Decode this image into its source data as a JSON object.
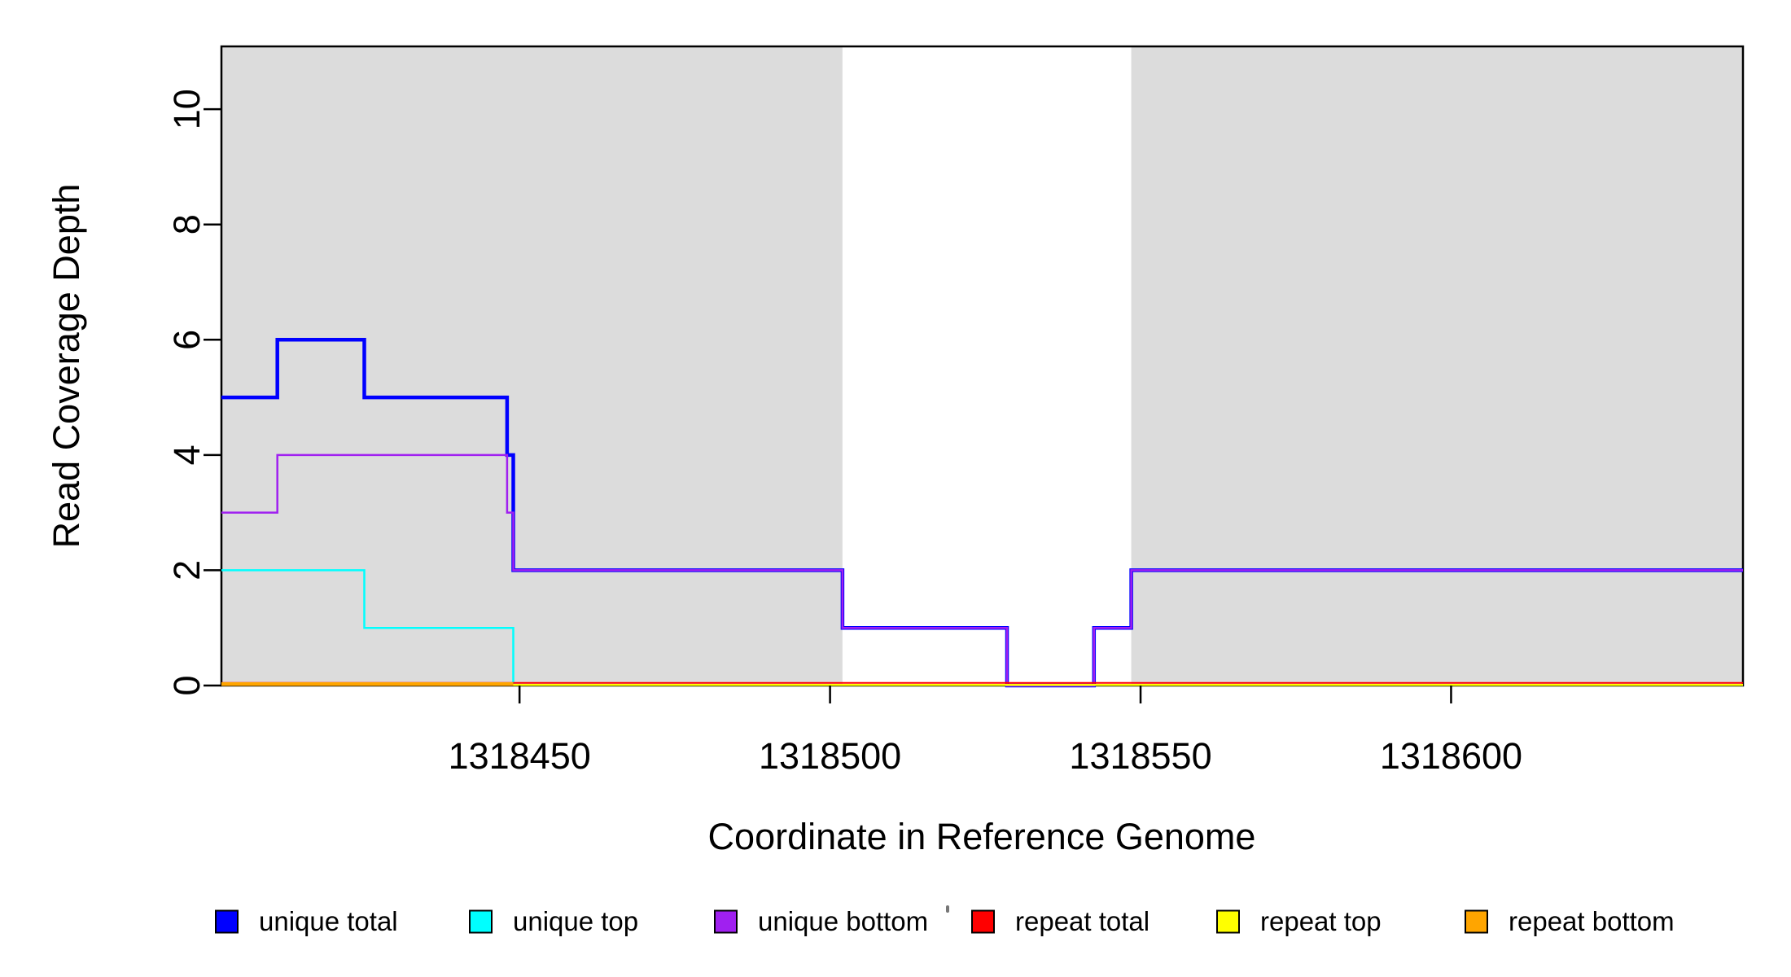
{
  "page": {
    "background": "#ffffff"
  },
  "chart_data": {
    "type": "line",
    "subtype": "step-coverage",
    "title": "",
    "xlabel": "Coordinate in Reference Genome",
    "ylabel": "Read Coverage Depth",
    "xlim": [
      1318402,
      1318647
    ],
    "ylim": [
      0,
      11.09
    ],
    "grid": false,
    "plot_background": "#ffffff",
    "shaded_region_color": "#DCDCDC",
    "shaded_regions": [
      {
        "from": 1318402,
        "to": 1318502
      },
      {
        "from": 1318548.5,
        "to": 1318647
      }
    ],
    "x_ticks": [
      {
        "value": 1318450,
        "label": "1318450"
      },
      {
        "value": 1318500,
        "label": "1318500"
      },
      {
        "value": 1318550,
        "label": "1318550"
      },
      {
        "value": 1318600,
        "label": "1318600"
      }
    ],
    "y_ticks": [
      {
        "value": 0,
        "label": "0"
      },
      {
        "value": 2,
        "label": "2"
      },
      {
        "value": 4,
        "label": "4"
      },
      {
        "value": 6,
        "label": "6"
      },
      {
        "value": 8,
        "label": "8"
      },
      {
        "value": 10,
        "label": "10"
      }
    ],
    "series": [
      {
        "name": "unique total",
        "color": "#0000FF",
        "width": 4.5,
        "dy": 0,
        "points": [
          [
            1318402,
            5
          ],
          [
            1318411,
            5
          ],
          [
            1318411,
            6
          ],
          [
            1318425,
            6
          ],
          [
            1318425,
            5
          ],
          [
            1318448,
            5
          ],
          [
            1318448,
            4
          ],
          [
            1318449,
            4
          ],
          [
            1318449,
            2
          ],
          [
            1318502,
            2
          ],
          [
            1318502,
            1
          ],
          [
            1318528.5,
            1
          ],
          [
            1318528.5,
            0
          ],
          [
            1318542.5,
            0
          ],
          [
            1318542.5,
            1
          ],
          [
            1318548.5,
            1
          ],
          [
            1318548.5,
            2
          ],
          [
            1318647,
            2
          ]
        ]
      },
      {
        "name": "unique top",
        "color": "#00FFFF",
        "width": 2.5,
        "dy": 0,
        "points": [
          [
            1318402,
            2
          ],
          [
            1318425,
            2
          ],
          [
            1318425,
            1
          ],
          [
            1318449,
            1
          ],
          [
            1318449,
            0
          ]
        ]
      },
      {
        "name": "unique bottom",
        "color": "#A020F0",
        "width": 2.5,
        "dy": 0,
        "points": [
          [
            1318402,
            3
          ],
          [
            1318411,
            3
          ],
          [
            1318411,
            4
          ],
          [
            1318448,
            4
          ],
          [
            1318448,
            3
          ],
          [
            1318449,
            3
          ],
          [
            1318449,
            2
          ],
          [
            1318502,
            2
          ],
          [
            1318502,
            1
          ],
          [
            1318528.5,
            1
          ],
          [
            1318528.5,
            0
          ],
          [
            1318542.5,
            0
          ],
          [
            1318542.5,
            1
          ],
          [
            1318548.5,
            1
          ],
          [
            1318548.5,
            2
          ],
          [
            1318647,
            2
          ]
        ]
      },
      {
        "name": "repeat total",
        "color": "#FF0000",
        "width": 2,
        "dy": -3.2,
        "points": [
          [
            1318402,
            0
          ],
          [
            1318647,
            0
          ]
        ]
      },
      {
        "name": "repeat top",
        "color": "#FFFF00",
        "width": 2.5,
        "dy": -0.8,
        "points": [
          [
            1318402,
            0
          ],
          [
            1318647,
            0
          ]
        ]
      },
      {
        "name": "repeat bottom",
        "color": "#FFA500",
        "width": 4.5,
        "dy": -1.8,
        "points": [
          [
            1318402,
            0
          ],
          [
            1318449,
            0
          ]
        ]
      }
    ],
    "legend": {
      "position": "bottom",
      "items": [
        {
          "label": "unique total",
          "color": "#0000FF"
        },
        {
          "label": "unique top",
          "color": "#00FFFF"
        },
        {
          "label": "unique bottom",
          "color": "#A020F0"
        },
        {
          "label": "repeat total",
          "color": "#FF0000"
        },
        {
          "label": "repeat top",
          "color": "#FFFF00"
        },
        {
          "label": "repeat bottom",
          "color": "#FFA500"
        }
      ]
    }
  }
}
